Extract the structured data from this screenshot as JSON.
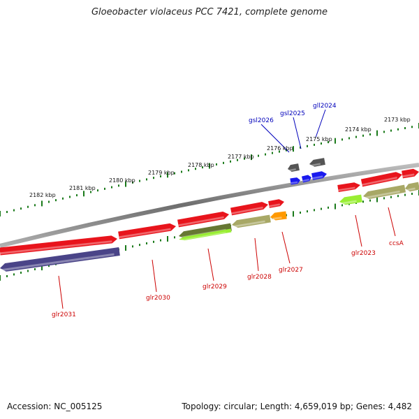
{
  "title": "Gloeobacter violaceus PCC 7421, complete genome",
  "footer": {
    "accession": "Accession: NC_005125",
    "summary": "Topology: circular; Length: 4,659,019 bp; Genes: 4,482"
  },
  "colors": {
    "backbone": "#8a8a8a",
    "tick": "#1a7a1a",
    "red_gene": "#e8141c",
    "blue_gene": "#1a1aee",
    "gray_gene": "#555555",
    "purple_gene": "#4a4488",
    "lime_gene": "#99ee33",
    "olive_gene": "#a8a866",
    "orange_gene": "#ff9900",
    "dark_olive_gene": "#667733",
    "label_red": "#cc0000",
    "label_blue": "#0000bb"
  },
  "scale_labels": [
    {
      "text": "2173 kbp"
    },
    {
      "text": "2174 kbp"
    },
    {
      "text": "2175 kbp"
    },
    {
      "text": "2176 kbp"
    },
    {
      "text": "2177 kbp"
    },
    {
      "text": "2178 kbp"
    },
    {
      "text": "2179 kbp"
    },
    {
      "text": "2180 kbp"
    },
    {
      "text": "2181 kbp"
    },
    {
      "text": "2182 kbp"
    }
  ],
  "gene_labels": [
    {
      "text": "gll2024",
      "color": "blue"
    },
    {
      "text": "gsl2025",
      "color": "blue"
    },
    {
      "text": "gsl2026",
      "color": "blue"
    },
    {
      "text": "glr2023",
      "color": "red"
    },
    {
      "text": "ccsA",
      "color": "red"
    },
    {
      "text": "glr2027",
      "color": "red"
    },
    {
      "text": "glr2028",
      "color": "red"
    },
    {
      "text": "glr2029",
      "color": "red"
    },
    {
      "text": "glr2030",
      "color": "red"
    },
    {
      "text": "glr2031",
      "color": "red"
    }
  ]
}
